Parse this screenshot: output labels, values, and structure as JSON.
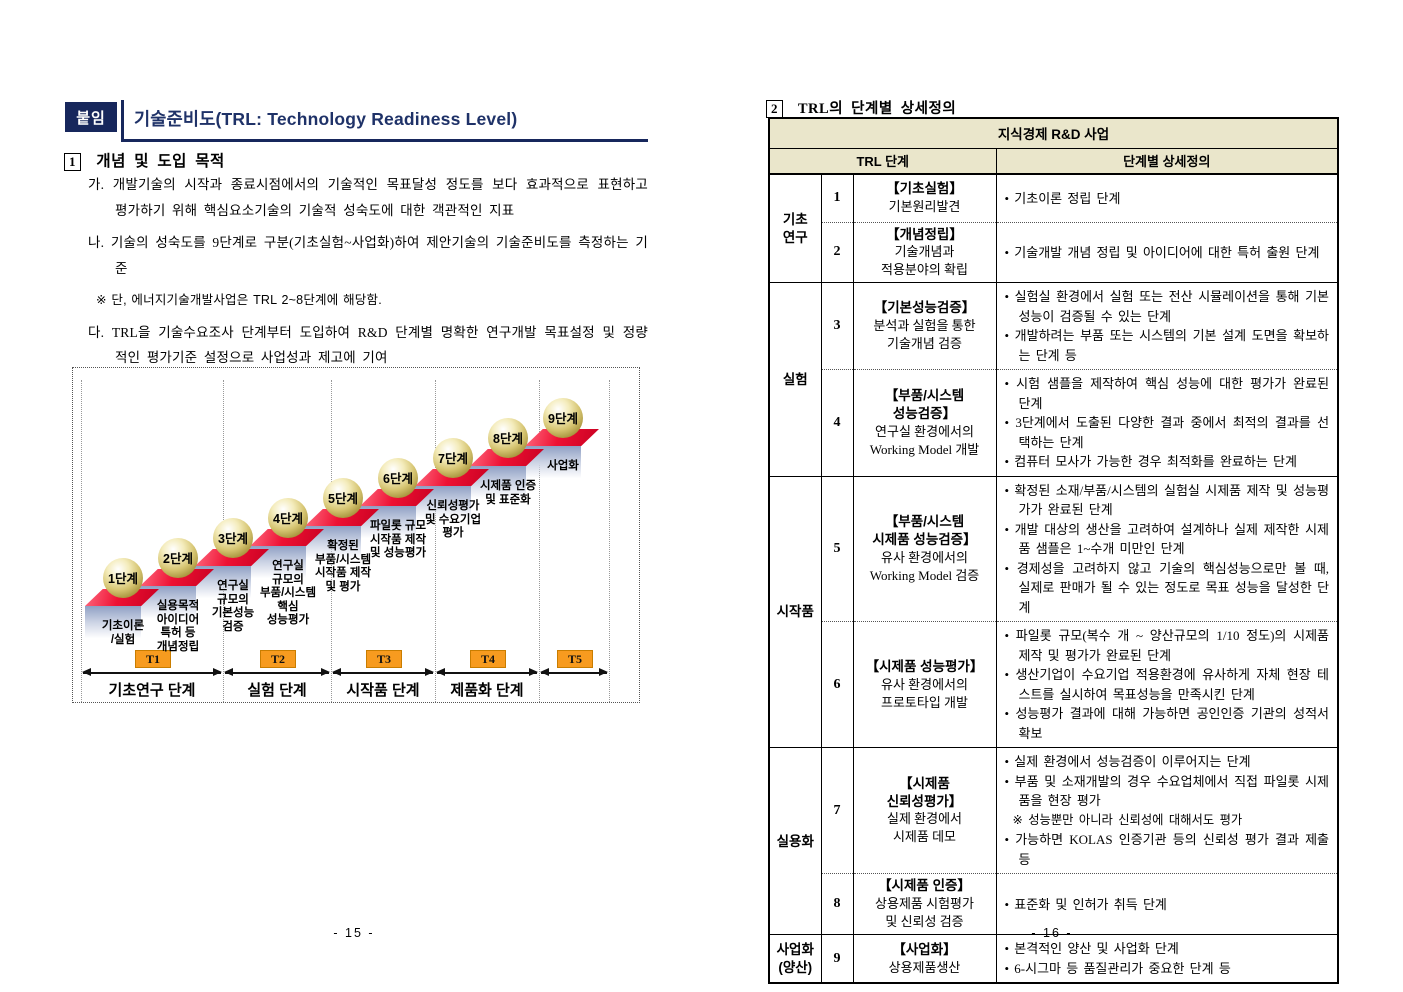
{
  "colors": {
    "navy": "#17275C",
    "title_navy": "#1F3268",
    "orange": "#F79B1F",
    "step_red": "#EE1133",
    "table_beige": "#EAE6CB",
    "ball_gold": "#D6C572",
    "step_face_blue": "#8FA0C4"
  },
  "page_left": {
    "badge": "붙임",
    "title": "기술준비도(TRL: Technology Readiness Level)",
    "section1": {
      "num": "1",
      "title": "개념 및 도입 목적"
    },
    "items": [
      {
        "label": "가.",
        "text": "개발기술의 시작과 종료시점에서의 기술적인 목표달성 정도를 보다 효과적으로 표현하고 평가하기 위해 핵심요소기술의 기술적 성숙도에 대한 객관적인 지표"
      },
      {
        "label": "나.",
        "text": "기술의 성숙도를 9단계로 구분(기초실험~사업화)하여 제안기술의 기술준비도를 측정하는 기준"
      },
      {
        "label": "※",
        "text": "단, 에너지기술개발사업은 TRL 2~8단계에 해당함."
      },
      {
        "label": "다.",
        "text": "TRL을 기술수요조사 단계부터 도입하여 R&D 단계별 명확한 연구개발 목표설정 및 정량적인 평가기준 설정으로 사업성과 제고에 기여"
      }
    ],
    "diagram": {
      "steps": [
        {
          "label": "1단계",
          "desc": "기초이론\n/실험"
        },
        {
          "label": "2단계",
          "desc": "실용목적\n아이디어\n특허 등\n개념정립"
        },
        {
          "label": "3단계",
          "desc": "연구실\n규모의\n기본성능\n검증"
        },
        {
          "label": "4단계",
          "desc": "연구실\n규모의\n부품/시스템\n핵심\n성능평가"
        },
        {
          "label": "5단계",
          "desc": "확정된\n부품/시스템\n시작품 제작\n및 평가"
        },
        {
          "label": "6단계",
          "desc": "파일롯 규모\n시작품 제작\n및 성능평가"
        },
        {
          "label": "7단계",
          "desc": "신뢰성평가\n및 수요기업\n평가"
        },
        {
          "label": "8단계",
          "desc": "시제품 인증\n및 표준화"
        },
        {
          "label": "9단계",
          "desc": "사업화"
        }
      ],
      "phases": [
        {
          "t": "T1",
          "name": "기초연구 단계"
        },
        {
          "t": "T2",
          "name": "실험 단계"
        },
        {
          "t": "T3",
          "name": "시작품 단계"
        },
        {
          "t": "T4",
          "name": "제품화 단계"
        },
        {
          "t": "T5",
          "name": ""
        }
      ]
    },
    "page_number": "- 15 -"
  },
  "page_right": {
    "section2": {
      "num": "2",
      "title": "TRL의 단계별 상세정의"
    },
    "table": {
      "caption": "지식경제 R&D 사업",
      "col1": "TRL 단계",
      "col2": "단계별 상세정의",
      "groups": [
        "기초\n연구",
        "실험",
        "시작품",
        "실용화",
        "사업화\n(양산)"
      ],
      "rows": [
        {
          "num": "1",
          "name_title": "【기초실험】",
          "name_sub": "기본원리발견",
          "details": [
            "• 기초이론 정립 단계"
          ]
        },
        {
          "num": "2",
          "name_title": "【개념정립】",
          "name_sub": "기술개념과\n적용분야의 확립",
          "details": [
            "• 기술개발 개념 정립 및 아이디어에 대한 특허 출원 단계"
          ]
        },
        {
          "num": "3",
          "name_title": "【기본성능검증】",
          "name_sub": "분석과 실험을 통한\n기술개념 검증",
          "details": [
            "• 실험실 환경에서 실험 또는 전산 시뮬레이션을 통해 기본 성능이 검증될 수 있는 단계",
            "• 개발하려는 부품 또는 시스템의 기본 설계 도면을 확보하는 단계 등"
          ]
        },
        {
          "num": "4",
          "name_title": "【부품/시스템\n성능검증】",
          "name_sub": "연구실 환경에서의\nWorking Model 개발",
          "details": [
            "• 시험 샘플을 제작하여 핵심 성능에 대한 평가가 완료된 단계",
            "• 3단계에서 도출된 다양한 결과 중에서 최적의 결과를 선택하는 단계",
            "• 컴퓨터 모사가 가능한 경우 최적화를 완료하는 단계"
          ]
        },
        {
          "num": "5",
          "name_title": "【부품/시스템\n시제품 성능검증】",
          "name_sub": "유사 환경에서의\nWorking Model 검증",
          "details": [
            "• 확정된 소재/부품/시스템의 실험실 시제품 제작 및 성능평가가 완료된 단계",
            "• 개발 대상의 생산을 고려하여 설계하나 실제 제작한 시제품 샘플은 1~수개 미만인 단계",
            "• 경제성을 고려하지 않고 기술의 핵심성능으로만 볼 때, 실제로 판매가 될 수 있는 정도로 목표 성능을 달성한 단계"
          ]
        },
        {
          "num": "6",
          "name_title": "【시제품 성능평가】",
          "name_sub": "유사 환경에서의\n프로토타입 개발",
          "details": [
            "• 파일롯 규모(복수 개 ~ 양산규모의 1/10 정도)의 시제품 제작 및 평가가 완료된 단계",
            "• 생산기업이 수요기업 적용환경에 유사하게 자체 현장 테스트를 실시하여 목표성능을 만족시킨 단계",
            "• 성능평가 결과에 대해 가능하면 공인인증 기관의 성적서 확보"
          ]
        },
        {
          "num": "7",
          "name_title": "【시제품\n신뢰성평가】",
          "name_sub": "실제 환경에서\n시제품 데모",
          "details": [
            "• 실제 환경에서 성능검증이 이루어지는 단계",
            "• 부품 및 소재개발의 경우 수요업체에서 직접 파일롯 시제품을 현장 평가",
            "※ 성능뿐만 아니라 신뢰성에 대해서도 평가",
            "• 가능하면 KOLAS 인증기관 등의 신뢰성 평가 결과 제출 등"
          ]
        },
        {
          "num": "8",
          "name_title": "【시제품 인증】",
          "name_sub": "상용제품 시험평가\n및 신뢰성 검증",
          "details": [
            "• 표준화 및 인허가 취득 단계"
          ]
        },
        {
          "num": "9",
          "name_title": "【사업화】",
          "name_sub": "상용제품생산",
          "details": [
            "• 본격적인 양산 및 사업화 단계",
            "• 6-시그마 등 품질관리가 중요한 단계 등"
          ]
        }
      ]
    },
    "page_number": "- 16 -"
  }
}
